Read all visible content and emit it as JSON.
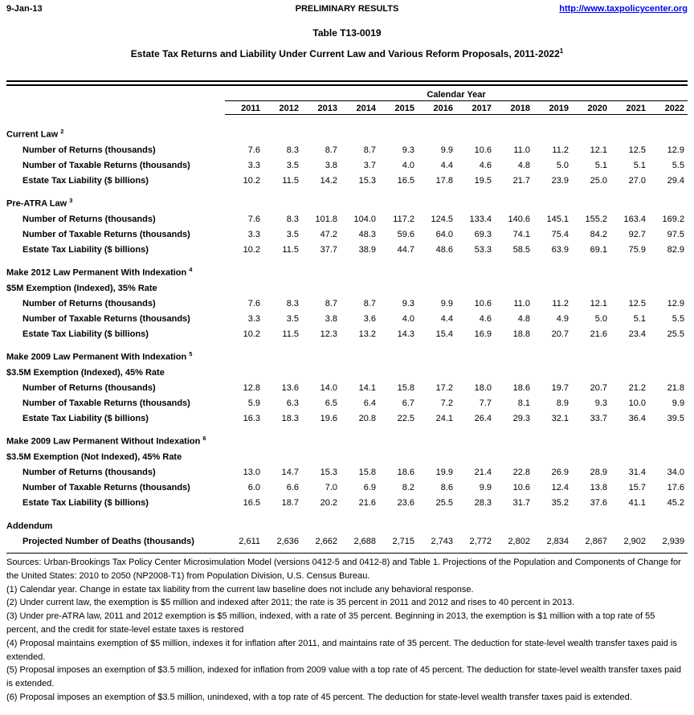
{
  "colors": {
    "link_blue": "#0000EE",
    "text": "#000000",
    "background": "#FFFFFF"
  },
  "header": {
    "date": "9-Jan-13",
    "status": "PRELIMINARY RESULTS",
    "url": "http://www.taxpolicycenter.org"
  },
  "title": "Table T13-0019",
  "subtitle": {
    "text": "Estate Tax Returns and Liability Under Current Law and Various Reform Proposals, 2011-2022",
    "footnote_marker": "1"
  },
  "table": {
    "group_header": "Calendar Year",
    "years": [
      "2011",
      "2012",
      "2013",
      "2014",
      "2015",
      "2016",
      "2017",
      "2018",
      "2019",
      "2020",
      "2021",
      "2022"
    ],
    "sections": [
      {
        "heading": "Current Law",
        "footnote_marker": "2",
        "subheading": null,
        "rows": [
          {
            "label": "Number of Returns (thousands)",
            "values": [
              "7.6",
              "8.3",
              "8.7",
              "8.7",
              "9.3",
              "9.9",
              "10.6",
              "11.0",
              "11.2",
              "12.1",
              "12.5",
              "12.9"
            ]
          },
          {
            "label": "Number of Taxable Returns (thousands)",
            "values": [
              "3.3",
              "3.5",
              "3.8",
              "3.7",
              "4.0",
              "4.4",
              "4.6",
              "4.8",
              "5.0",
              "5.1",
              "5.1",
              "5.5"
            ]
          },
          {
            "label": "Estate Tax Liability ($ billions)",
            "values": [
              "10.2",
              "11.5",
              "14.2",
              "15.3",
              "16.5",
              "17.8",
              "19.5",
              "21.7",
              "23.9",
              "25.0",
              "27.0",
              "29.4"
            ]
          }
        ]
      },
      {
        "heading": "Pre-ATRA Law",
        "footnote_marker": "3",
        "subheading": null,
        "rows": [
          {
            "label": "Number of Returns (thousands)",
            "values": [
              "7.6",
              "8.3",
              "101.8",
              "104.0",
              "117.2",
              "124.5",
              "133.4",
              "140.6",
              "145.1",
              "155.2",
              "163.4",
              "169.2"
            ]
          },
          {
            "label": "Number of Taxable Returns (thousands)",
            "values": [
              "3.3",
              "3.5",
              "47.2",
              "48.3",
              "59.6",
              "64.0",
              "69.3",
              "74.1",
              "75.4",
              "84.2",
              "92.7",
              "97.5"
            ]
          },
          {
            "label": "Estate Tax Liability ($ billions)",
            "values": [
              "10.2",
              "11.5",
              "37.7",
              "38.9",
              "44.7",
              "48.6",
              "53.3",
              "58.5",
              "63.9",
              "69.1",
              "75.9",
              "82.9"
            ]
          }
        ]
      },
      {
        "heading": "Make 2012 Law Permanent With Indexation",
        "footnote_marker": "4",
        "subheading": "$5M Exemption (Indexed), 35% Rate",
        "rows": [
          {
            "label": "Number of Returns (thousands)",
            "values": [
              "7.6",
              "8.3",
              "8.7",
              "8.7",
              "9.3",
              "9.9",
              "10.6",
              "11.0",
              "11.2",
              "12.1",
              "12.5",
              "12.9"
            ]
          },
          {
            "label": "Number of Taxable Returns (thousands)",
            "values": [
              "3.3",
              "3.5",
              "3.8",
              "3.6",
              "4.0",
              "4.4",
              "4.6",
              "4.8",
              "4.9",
              "5.0",
              "5.1",
              "5.5"
            ]
          },
          {
            "label": "Estate Tax Liability ($ billions)",
            "values": [
              "10.2",
              "11.5",
              "12.3",
              "13.2",
              "14.3",
              "15.4",
              "16.9",
              "18.8",
              "20.7",
              "21.6",
              "23.4",
              "25.5"
            ]
          }
        ]
      },
      {
        "heading": "Make 2009 Law Permanent With Indexation",
        "footnote_marker": "5",
        "subheading": "$3.5M Exemption (Indexed), 45% Rate",
        "rows": [
          {
            "label": "Number of Returns (thousands)",
            "values": [
              "12.8",
              "13.6",
              "14.0",
              "14.1",
              "15.8",
              "17.2",
              "18.0",
              "18.6",
              "19.7",
              "20.7",
              "21.2",
              "21.8"
            ]
          },
          {
            "label": "Number of Taxable Returns (thousands)",
            "values": [
              "5.9",
              "6.3",
              "6.5",
              "6.4",
              "6.7",
              "7.2",
              "7.7",
              "8.1",
              "8.9",
              "9.3",
              "10.0",
              "9.9"
            ]
          },
          {
            "label": "Estate Tax Liability ($ billions)",
            "values": [
              "16.3",
              "18.3",
              "19.6",
              "20.8",
              "22.5",
              "24.1",
              "26.4",
              "29.3",
              "32.1",
              "33.7",
              "36.4",
              "39.5"
            ]
          }
        ]
      },
      {
        "heading": "Make 2009 Law Permanent Without Indexation",
        "footnote_marker": "6",
        "subheading": "$3.5M Exemption (Not Indexed), 45% Rate",
        "rows": [
          {
            "label": "Number of Returns (thousands)",
            "values": [
              "13.0",
              "14.7",
              "15.3",
              "15.8",
              "18.6",
              "19.9",
              "21.4",
              "22.8",
              "26.9",
              "28.9",
              "31.4",
              "34.0"
            ]
          },
          {
            "label": "Number of Taxable Returns (thousands)",
            "values": [
              "6.0",
              "6.6",
              "7.0",
              "6.9",
              "8.2",
              "8.6",
              "9.9",
              "10.6",
              "12.4",
              "13.8",
              "15.7",
              "17.6"
            ]
          },
          {
            "label": "Estate Tax Liability ($ billions)",
            "values": [
              "16.5",
              "18.7",
              "20.2",
              "21.6",
              "23.6",
              "25.5",
              "28.3",
              "31.7",
              "35.2",
              "37.6",
              "41.1",
              "45.2"
            ]
          }
        ]
      },
      {
        "heading": "Addendum",
        "footnote_marker": null,
        "subheading": null,
        "rows": [
          {
            "label": "Projected Number of Deaths (thousands)",
            "values": [
              "2,611",
              "2,636",
              "2,662",
              "2,688",
              "2,715",
              "2,743",
              "2,772",
              "2,802",
              "2,834",
              "2,867",
              "2,902",
              "2,939"
            ]
          }
        ]
      }
    ]
  },
  "footnotes": [
    "Sources: Urban-Brookings Tax Policy Center Microsimulation Model (versions 0412-5 and 0412-8) and Table 1. Projections of the Population and Components of Change for the United States: 2010 to 2050 (NP2008-T1) from Population Division, U.S. Census Bureau.",
    "(1) Calendar year.  Change in estate tax liability from the current law baseline does not include any behavioral response.",
    "(2) Under current law, the exemption is $5 million and indexed after 2011; the rate is 35 percent in 2011 and 2012 and rises to 40 percent in 2013.",
    "(3) Under pre-ATRA law, 2011 and 2012 exemption is $5 million, indexed, with a rate of 35 percent.  Beginning in 2013, the exemption is $1 million with a top rate of 55 percent, and the credit for state-level estate taxes is restored",
    "(4) Proposal maintains exemption of $5 million, indexes it for inflation after 2011, and maintains rate of 35 percent.  The deduction for state-level wealth transfer taxes paid is extended.",
    "(5) Proposal imposes an exemption of $3.5 million, indexed for inflation from 2009 value with a top rate of 45 percent.  The deduction for state-level wealth transfer taxes paid is extended.",
    "(6) Proposal imposes an exemption of $3.5 million, unindexed, with a top rate of 45 percent.  The deduction for state-level wealth transfer taxes paid is extended."
  ]
}
